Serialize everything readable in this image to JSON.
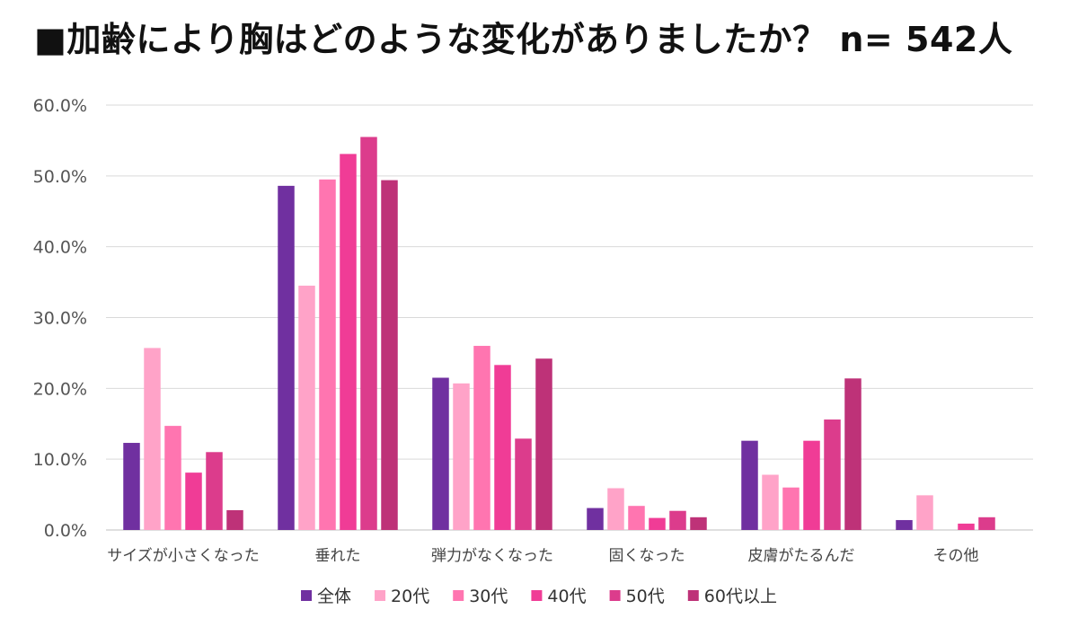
{
  "chart_data": {
    "type": "bar",
    "title": "■加齢により胸はどのような変化がありましたか？ n= 542人",
    "categories": [
      "サイズが小さくなった",
      "垂れた",
      "弾力がなくなった",
      "固くなった",
      "皮膚がたるんだ",
      "その他"
    ],
    "series": [
      {
        "name": "全体",
        "color": "#7030a0",
        "values": [
          12.3,
          48.6,
          21.5,
          3.1,
          12.6,
          1.4
        ]
      },
      {
        "name": "20代",
        "color": "#ffa3c8",
        "values": [
          25.7,
          34.5,
          20.7,
          5.9,
          7.8,
          4.9
        ]
      },
      {
        "name": "30代",
        "color": "#ff75b0",
        "values": [
          14.7,
          49.5,
          26.0,
          3.4,
          6.0,
          0
        ]
      },
      {
        "name": "40代",
        "color": "#f03c96",
        "values": [
          8.1,
          53.1,
          23.3,
          1.7,
          12.6,
          0.9
        ]
      },
      {
        "name": "50代",
        "color": "#dc3c8c",
        "values": [
          11.0,
          55.5,
          12.9,
          2.7,
          15.6,
          1.8
        ]
      },
      {
        "name": "60代以上",
        "color": "#be3278",
        "values": [
          2.8,
          49.4,
          24.2,
          1.8,
          21.4,
          0
        ]
      }
    ],
    "ylim": [
      0,
      60
    ],
    "yticks": [
      "0.0%",
      "10.0%",
      "20.0%",
      "30.0%",
      "40.0%",
      "50.0%",
      "60.0%"
    ],
    "ytick_values": [
      0,
      10,
      20,
      30,
      40,
      50,
      60
    ],
    "xlabel": "",
    "ylabel": "",
    "grid": true,
    "legend_position": "bottom"
  }
}
